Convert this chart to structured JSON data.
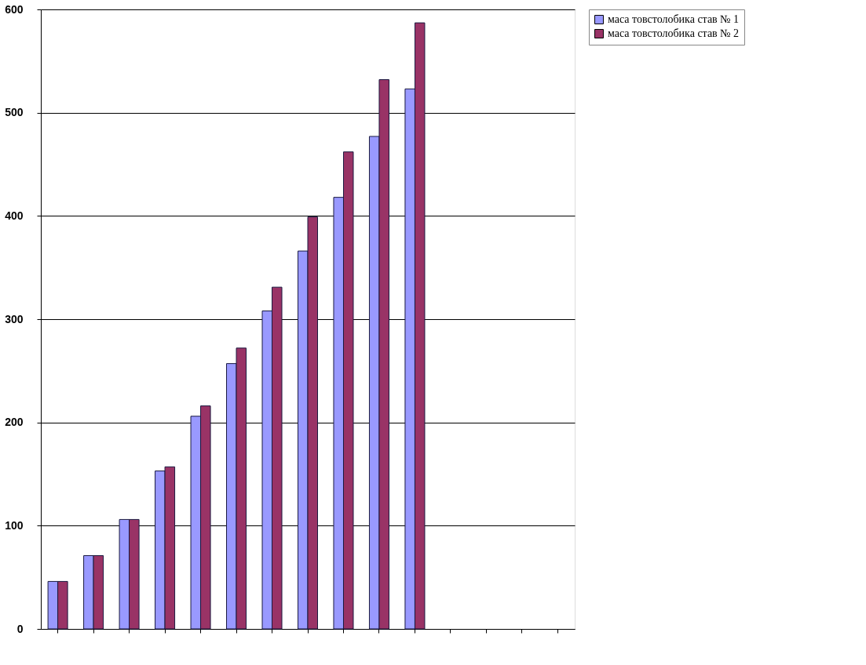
{
  "chart_data": {
    "type": "bar",
    "categories": [
      null,
      null,
      null,
      null,
      null,
      null,
      null,
      null,
      null,
      null,
      null,
      null,
      null,
      null,
      null
    ],
    "series": [
      {
        "name": "маса товстолобика став № 1",
        "color": "#9999ff",
        "values": [
          46,
          71,
          106,
          153,
          206,
          257,
          308,
          366,
          418,
          477,
          523,
          null,
          null,
          null,
          null
        ]
      },
      {
        "name": "маса товстолобика став № 2",
        "color": "#993366",
        "values": [
          46,
          71,
          106,
          157,
          216,
          272,
          331,
          399,
          462,
          532,
          587,
          null,
          null,
          null,
          null
        ]
      }
    ],
    "ylim": [
      0,
      600
    ],
    "yticks": [
      0,
      100,
      200,
      300,
      400,
      500,
      600
    ],
    "grid": "y",
    "legend": "right",
    "tick_labels": "y"
  }
}
